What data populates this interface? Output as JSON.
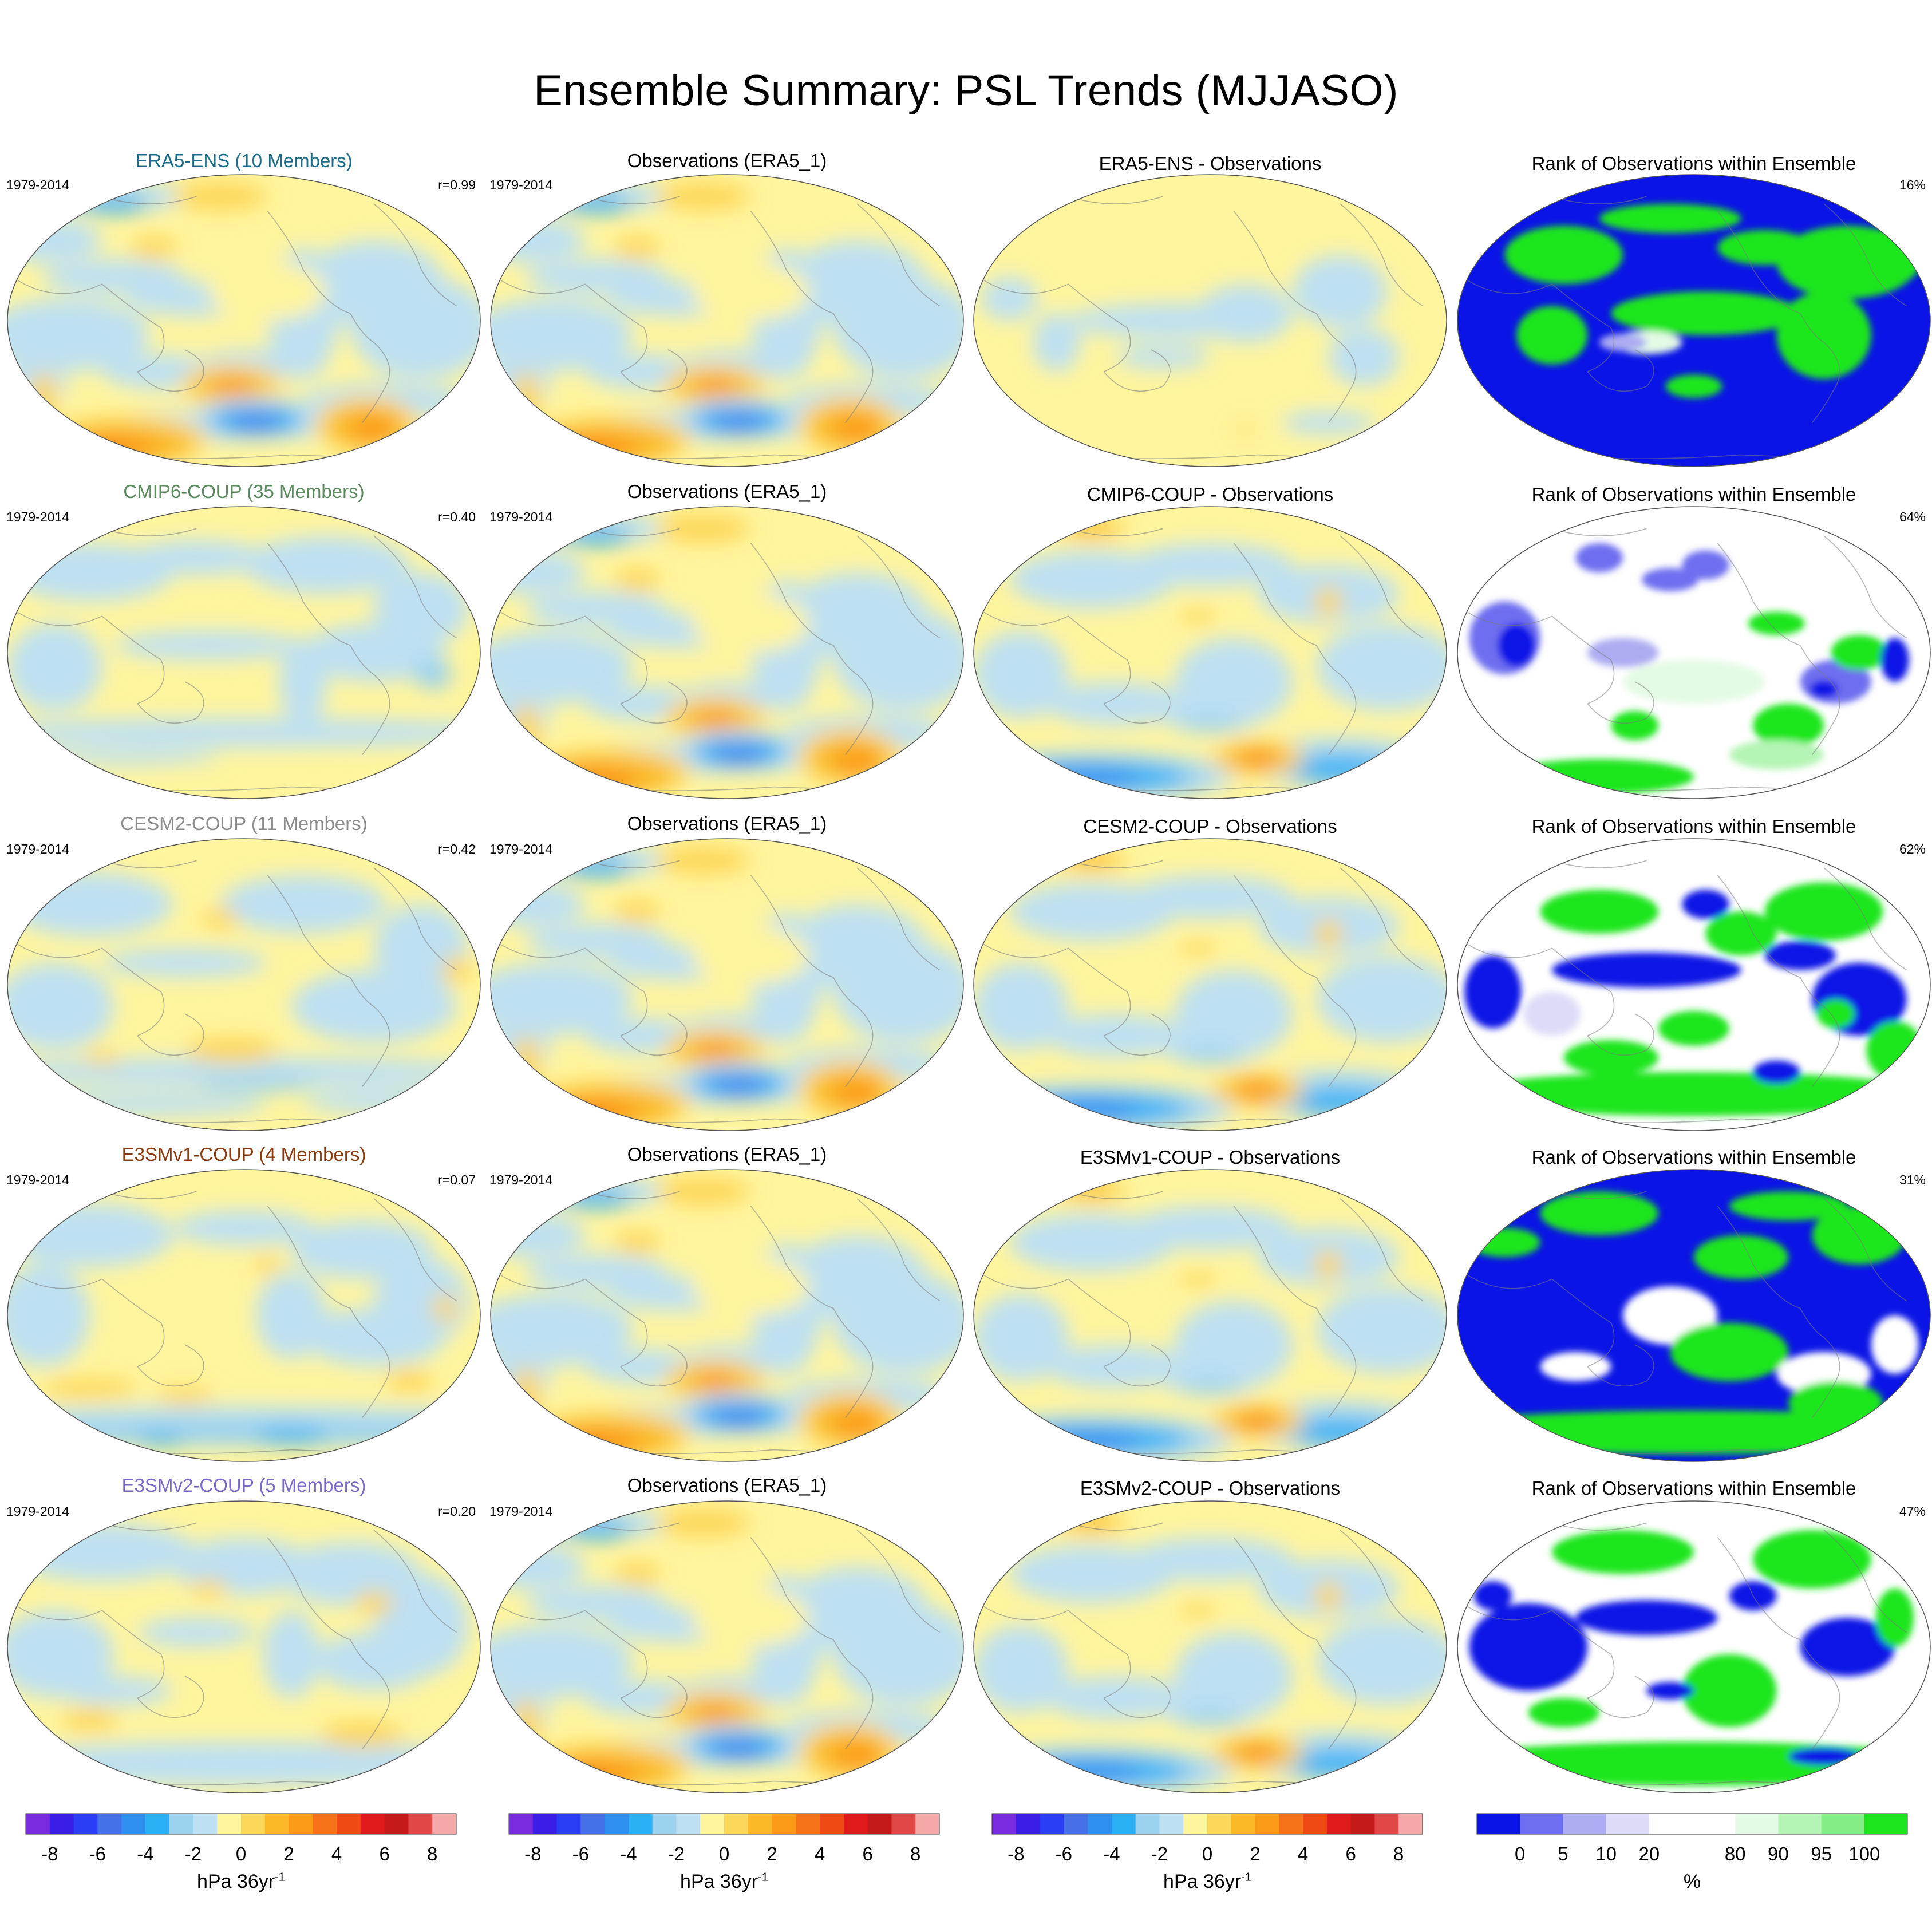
{
  "title": "Ensemble Summary: PSL Trends (MJJASO)",
  "period": "1979-2014",
  "rows": [
    {
      "model": {
        "title": "ERA5-ENS (10 Members)",
        "color": "#1a6d8c",
        "r": "r=0.99",
        "pattern": "era5"
      },
      "obs": {
        "title": "Observations (ERA5_1)"
      },
      "diff": {
        "title": "ERA5-ENS - Observations",
        "pattern": "diff_era5"
      },
      "rank": {
        "title": "Rank of Observations within Ensemble",
        "pct": "16%",
        "pattern": "rank1"
      }
    },
    {
      "model": {
        "title": "CMIP6-COUP (35 Members)",
        "color": "#5a8a5e",
        "r": "r=0.40",
        "pattern": "cmip6"
      },
      "obs": {
        "title": "Observations (ERA5_1)"
      },
      "diff": {
        "title": "CMIP6-COUP - Observations",
        "pattern": "diff"
      },
      "rank": {
        "title": "Rank of Observations within Ensemble",
        "pct": "64%",
        "pattern": "rank2"
      }
    },
    {
      "model": {
        "title": "CESM2-COUP (11 Members)",
        "color": "#8c8c8c",
        "r": "r=0.42",
        "pattern": "cesm2"
      },
      "obs": {
        "title": "Observations (ERA5_1)"
      },
      "diff": {
        "title": "CESM2-COUP - Observations",
        "pattern": "diff"
      },
      "rank": {
        "title": "Rank of Observations within Ensemble",
        "pct": "62%",
        "pattern": "rank3"
      }
    },
    {
      "model": {
        "title": "E3SMv1-COUP (4 Members)",
        "color": "#8b3a0e",
        "r": "r=0.07",
        "pattern": "e3smv1"
      },
      "obs": {
        "title": "Observations (ERA5_1)"
      },
      "diff": {
        "title": "E3SMv1-COUP - Observations",
        "pattern": "diff"
      },
      "rank": {
        "title": "Rank of Observations within Ensemble",
        "pct": "31%",
        "pattern": "rank4"
      }
    },
    {
      "model": {
        "title": "E3SMv2-COUP (5 Members)",
        "color": "#7b68c8",
        "r": "r=0.20",
        "pattern": "e3smv2"
      },
      "obs": {
        "title": "Observations (ERA5_1)"
      },
      "diff": {
        "title": "E3SMv2-COUP - Observations",
        "pattern": "diff"
      },
      "rank": {
        "title": "Rank of Observations within Ensemble",
        "pct": "47%",
        "pattern": "rank5"
      }
    }
  ],
  "trend_colorbar": {
    "colors": [
      "#7a2be0",
      "#3a1ee8",
      "#2a3ef5",
      "#4670e8",
      "#2e8fef",
      "#29b0f5",
      "#9ad2ef",
      "#bde0f2",
      "#fff59e",
      "#fdd75a",
      "#fbb928",
      "#fb9a15",
      "#f6731a",
      "#f04a14",
      "#e01a1a",
      "#c41a1a",
      "#e04848",
      "#f4a8a8"
    ],
    "tick_labels": [
      "-8",
      "-6",
      "-4",
      "-2",
      "0",
      "2",
      "4",
      "6",
      "8"
    ],
    "units_main": "hPa 36yr",
    "units_sup": "-1"
  },
  "rank_colorbar": {
    "colors": [
      "#0a14e6",
      "#6e6ef0",
      "#acacf2",
      "#dcdcf8",
      "#ffffff",
      "#ffffff",
      "#e4fae4",
      "#b4f4b4",
      "#84ee84",
      "#1ee61e"
    ],
    "tick_labels": [
      "0",
      "5",
      "10",
      "20",
      "80",
      "90",
      "95",
      "100"
    ],
    "units": "%"
  },
  "chart_data": {
    "type": "heatmap",
    "title": "Ensemble Summary: PSL Trends (MJJASO)",
    "period": "1979-2014",
    "variable": "PSL trend",
    "units": "hPa 36yr-1",
    "value_range": [
      -9,
      9
    ],
    "pattern_correlations": [
      {
        "model": "ERA5-ENS (10 Members)",
        "r": 0.99
      },
      {
        "model": "CMIP6-COUP (35 Members)",
        "r": 0.4
      },
      {
        "model": "CESM2-COUP (11 Members)",
        "r": 0.42
      },
      {
        "model": "E3SMv1-COUP (4 Members)",
        "r": 0.07
      },
      {
        "model": "E3SMv2-COUP (5 Members)",
        "r": 0.2
      }
    ],
    "rank_percent_values": [
      16,
      64,
      62,
      31,
      47
    ],
    "rank_units": "%"
  }
}
